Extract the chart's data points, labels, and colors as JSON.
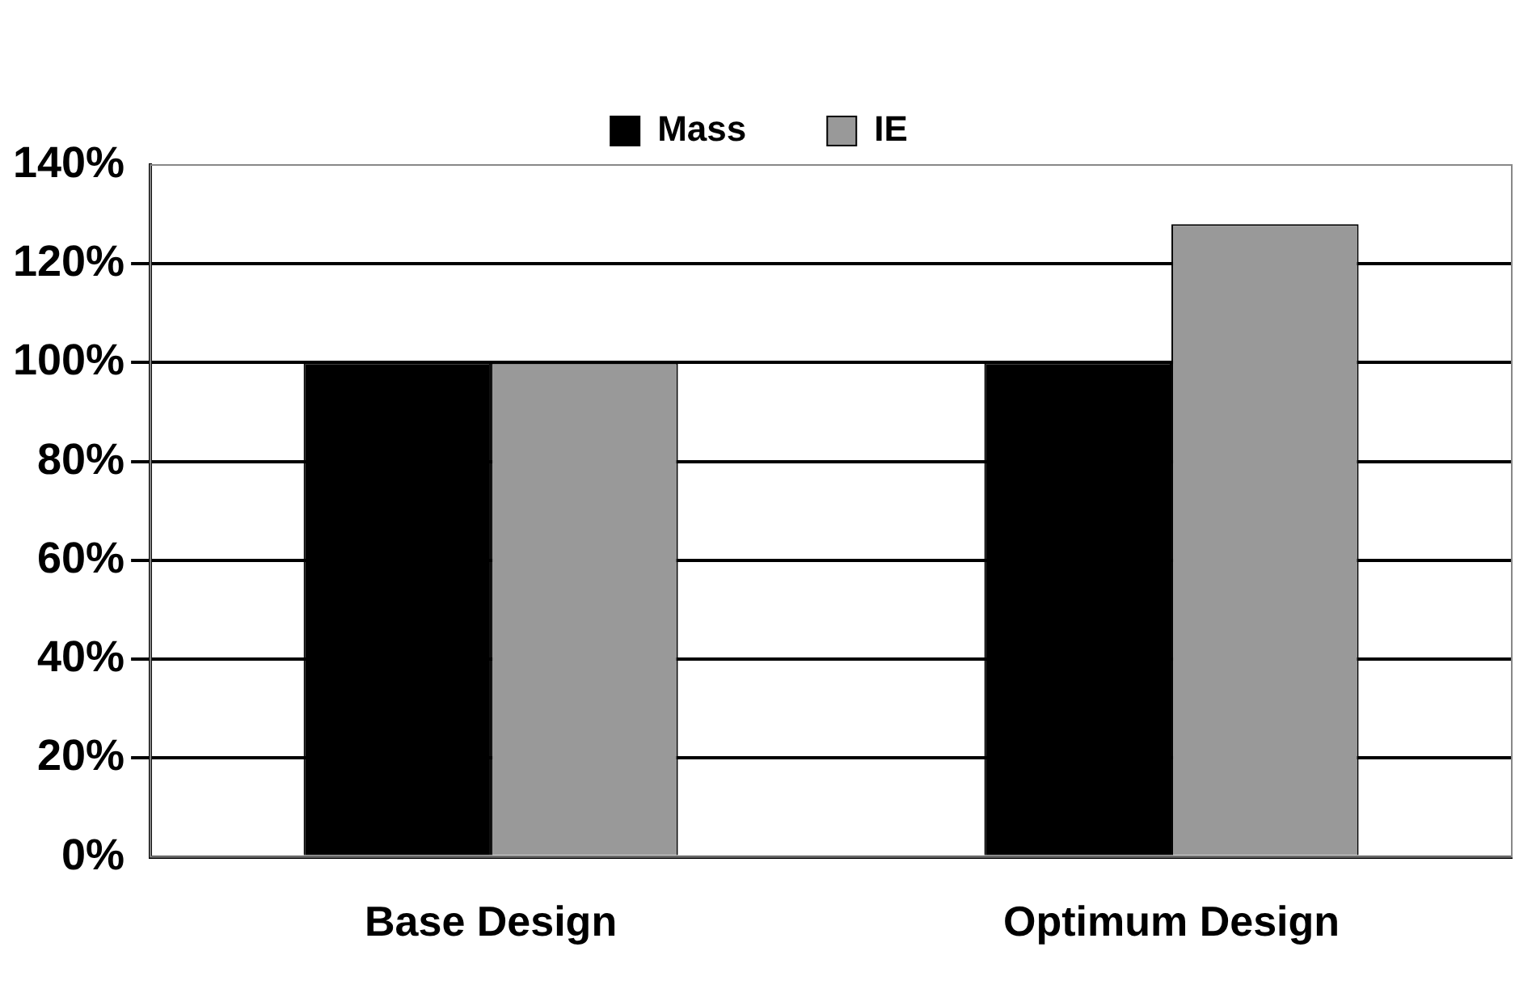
{
  "chart_data": {
    "type": "bar",
    "categories": [
      "Base Design",
      "Optimum Design"
    ],
    "series": [
      {
        "name": "Mass",
        "color": "#000000",
        "values": [
          100,
          100
        ]
      },
      {
        "name": "IE",
        "color": "#999999",
        "values": [
          100,
          128
        ]
      }
    ],
    "ylim": [
      0,
      140
    ],
    "yticks": [
      {
        "value": 0,
        "label": "0%"
      },
      {
        "value": 20,
        "label": "20%"
      },
      {
        "value": 40,
        "label": "40%"
      },
      {
        "value": 60,
        "label": "60%"
      },
      {
        "value": 80,
        "label": "80%"
      },
      {
        "value": 100,
        "label": "100%"
      },
      {
        "value": 120,
        "label": "120%"
      },
      {
        "value": 140,
        "label": "140%"
      }
    ],
    "grid": "y",
    "legend": "top"
  }
}
